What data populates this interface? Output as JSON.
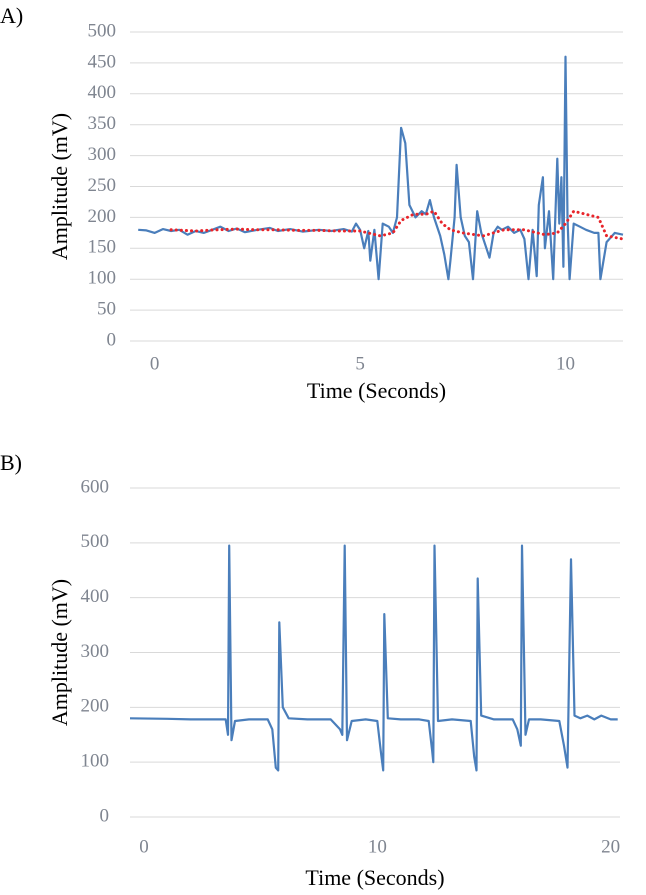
{
  "chart_data": [
    {
      "type": "line",
      "panel_label": "A)",
      "ylabel": "Amplitude (mV)",
      "xlabel": "Time (Seconds)",
      "xlim": [
        -0.6,
        11.4
      ],
      "xticks": [
        0,
        5,
        10
      ],
      "ylim": [
        0,
        500
      ],
      "yticks": [
        0,
        50,
        100,
        150,
        200,
        250,
        300,
        350,
        400,
        450,
        500
      ],
      "grid": true,
      "series": [
        {
          "color": "#4a7ebb",
          "style": "solid",
          "x": [
            -0.4,
            -0.2,
            0,
            0.2,
            0.4,
            0.6,
            0.8,
            1.0,
            1.2,
            1.4,
            1.6,
            1.8,
            2.0,
            2.2,
            2.5,
            2.8,
            3.0,
            3.3,
            3.6,
            4.0,
            4.3,
            4.6,
            4.8,
            4.9,
            5.0,
            5.1,
            5.2,
            5.25,
            5.35,
            5.45,
            5.55,
            5.7,
            5.8,
            5.9,
            6.0,
            6.1,
            6.2,
            6.35,
            6.5,
            6.6,
            6.7,
            6.8,
            6.95,
            7.05,
            7.15,
            7.2,
            7.3,
            7.35,
            7.45,
            7.55,
            7.65,
            7.75,
            7.85,
            7.95,
            8.05,
            8.15,
            8.25,
            8.35,
            8.45,
            8.6,
            8.75,
            8.9,
            9.0,
            9.1,
            9.2,
            9.3,
            9.35,
            9.45,
            9.5,
            9.6,
            9.7,
            9.8,
            9.85,
            9.9,
            9.95,
            10.0,
            10.05,
            10.1,
            10.2,
            10.35,
            10.5,
            10.7,
            10.8,
            10.85,
            11.0,
            11.2,
            11.4
          ],
          "values": [
            180,
            179,
            175,
            181,
            178,
            180,
            172,
            178,
            175,
            180,
            185,
            178,
            182,
            176,
            180,
            183,
            178,
            181,
            177,
            180,
            178,
            181,
            177,
            190,
            180,
            150,
            178,
            130,
            180,
            100,
            190,
            185,
            175,
            200,
            345,
            320,
            220,
            200,
            210,
            205,
            228,
            200,
            170,
            140,
            100,
            130,
            200,
            285,
            200,
            170,
            160,
            100,
            210,
            175,
            155,
            135,
            175,
            185,
            180,
            185,
            175,
            180,
            165,
            100,
            180,
            105,
            220,
            265,
            150,
            210,
            100,
            295,
            190,
            265,
            120,
            460,
            200,
            100,
            190,
            185,
            180,
            175,
            175,
            100,
            160,
            175,
            172
          ]
        },
        {
          "color": "#e8252b",
          "style": "dotted",
          "x": [
            0.4,
            1.0,
            1.5,
            2.0,
            2.5,
            3.0,
            3.5,
            4.0,
            4.5,
            5.0,
            5.5,
            5.8,
            6.0,
            6.3,
            6.6,
            6.8,
            7.0,
            7.2,
            7.5,
            8.0,
            8.5,
            9.0,
            9.5,
            9.8,
            10.0,
            10.2,
            10.5,
            10.8,
            11.0,
            11.4
          ],
          "values": [
            180,
            178,
            180,
            181,
            180,
            180,
            179,
            179,
            178,
            178,
            170,
            175,
            195,
            205,
            205,
            210,
            190,
            180,
            175,
            170,
            180,
            180,
            172,
            175,
            190,
            210,
            205,
            200,
            170,
            165
          ]
        }
      ]
    },
    {
      "type": "line",
      "panel_label": "B)",
      "ylabel": "Amplitude (mV)",
      "xlabel": "Time (Seconds)",
      "xlim": [
        -0.6,
        20.4
      ],
      "xticks": [
        0,
        10,
        20
      ],
      "ylim": [
        0,
        600
      ],
      "yticks": [
        0,
        100,
        200,
        300,
        400,
        500,
        600
      ],
      "grid": true,
      "series": [
        {
          "color": "#4a7ebb",
          "style": "solid",
          "x": [
            -0.6,
            1,
            2,
            3,
            3.5,
            3.6,
            3.65,
            3.75,
            3.9,
            4.5,
            5.3,
            5.5,
            5.65,
            5.75,
            5.8,
            5.95,
            6.2,
            7,
            8,
            8.4,
            8.5,
            8.6,
            8.7,
            8.9,
            9.5,
            10.0,
            10.15,
            10.25,
            10.3,
            10.45,
            11,
            11.8,
            12.2,
            12.35,
            12.4,
            12.45,
            12.6,
            13.2,
            14.0,
            14.15,
            14.25,
            14.3,
            14.45,
            15,
            15.8,
            16.0,
            16.15,
            16.2,
            16.35,
            16.5,
            17,
            17.8,
            18.0,
            18.15,
            18.3,
            18.45,
            18.7,
            19,
            19.3,
            19.6,
            20,
            20.3
          ],
          "values": [
            180,
            179,
            178,
            178,
            178,
            150,
            495,
            140,
            175,
            178,
            178,
            160,
            90,
            85,
            355,
            200,
            180,
            178,
            178,
            160,
            150,
            495,
            140,
            175,
            178,
            175,
            120,
            85,
            370,
            180,
            178,
            178,
            175,
            120,
            100,
            495,
            175,
            178,
            175,
            110,
            85,
            435,
            185,
            178,
            178,
            160,
            130,
            495,
            150,
            178,
            178,
            175,
            130,
            90,
            470,
            185,
            180,
            185,
            178,
            185,
            178,
            178
          ]
        }
      ]
    }
  ]
}
